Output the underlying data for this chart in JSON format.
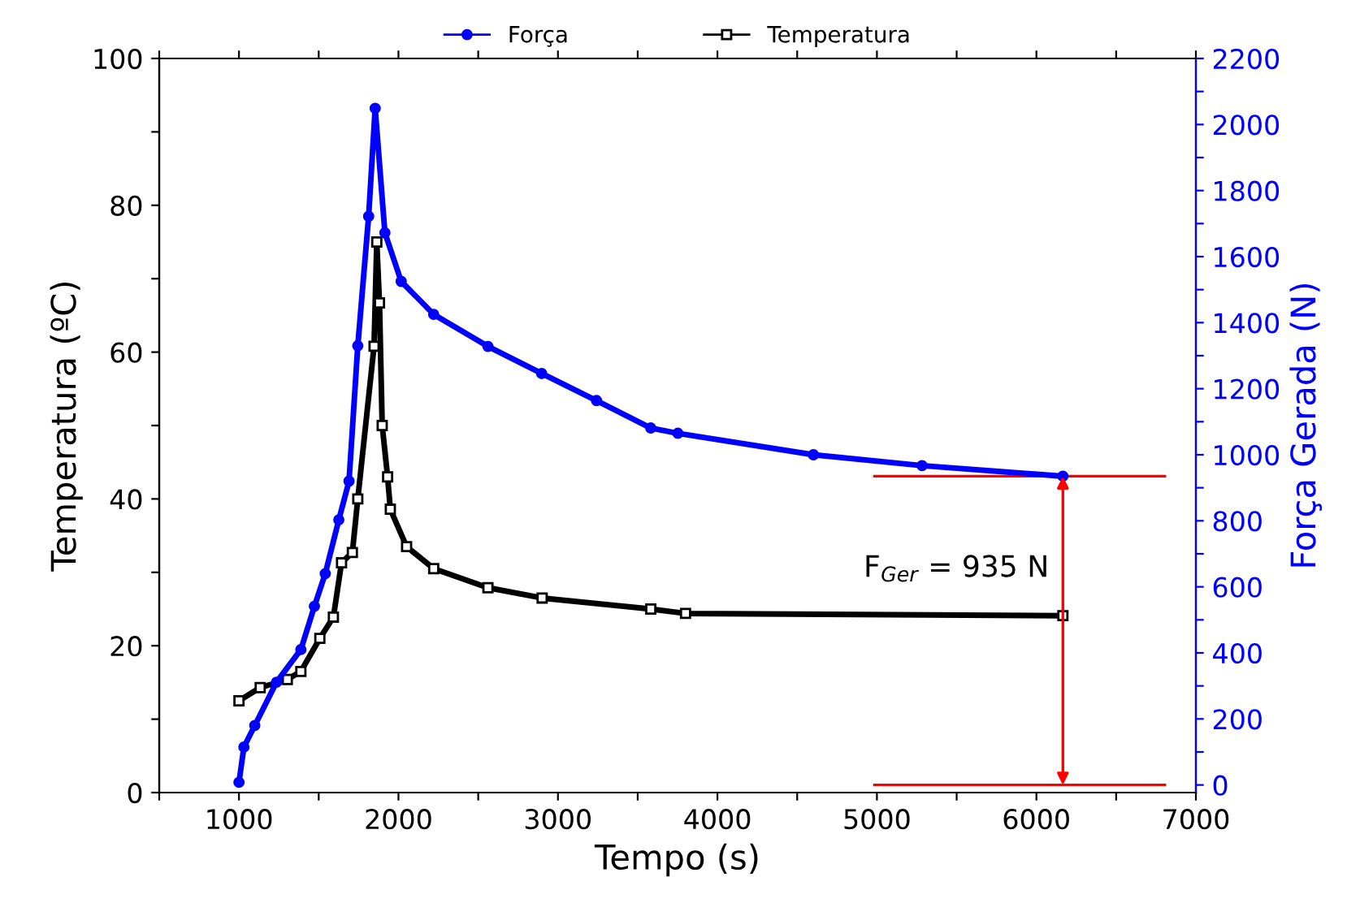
{
  "chart_data": {
    "type": "line",
    "xlabel": "Tempo (s)",
    "ylabel": "Temperatura (ºC)",
    "y2label": "Força Gerada (N)",
    "xlim": [
      500,
      7000
    ],
    "xticks": [
      {
        "value": 500,
        "label": null
      },
      1000,
      {
        "value": 1500,
        "label": null
      },
      2000,
      {
        "value": 2500,
        "label": null
      },
      3000,
      {
        "value": 3500,
        "label": null
      },
      4000,
      {
        "value": 4500,
        "label": null
      },
      5000,
      {
        "value": 5500,
        "label": null
      },
      6000,
      {
        "value": 6500,
        "label": null
      },
      7000
    ],
    "ylim": [
      0,
      100
    ],
    "yticks": [
      0,
      {
        "value": 10,
        "label": null
      },
      20,
      {
        "value": 30,
        "label": null
      },
      40,
      {
        "value": 50,
        "label": null
      },
      60,
      {
        "value": 70,
        "label": null
      },
      80,
      {
        "value": 90,
        "label": null
      },
      100
    ],
    "y2lim": [
      -23,
      2200
    ],
    "y2ticks": [
      0,
      {
        "value": 100,
        "label": null
      },
      200,
      {
        "value": 300,
        "label": null
      },
      400,
      {
        "value": 500,
        "label": null
      },
      600,
      {
        "value": 700,
        "label": null
      },
      800,
      {
        "value": 900,
        "label": null
      },
      1000,
      {
        "value": 1100,
        "label": null
      },
      1200,
      {
        "value": 1300,
        "label": null
      },
      1400,
      {
        "value": 1500,
        "label": null
      },
      1600,
      {
        "value": 1700,
        "label": null
      },
      1800,
      {
        "value": 1900,
        "label": null
      },
      2000,
      {
        "value": 2100,
        "label": null
      },
      2200
    ],
    "legend": "top",
    "grid": false,
    "line_style": "solid",
    "series": [
      {
        "name": "Força",
        "color": "#0000ff",
        "axis": "y2",
        "marker": "circle",
        "x": [
          1000,
          1031,
          1099,
          1235,
          1388,
          1473,
          1541,
          1626,
          1690,
          1745,
          1813,
          1854,
          1915,
          2017,
          2221,
          2561,
          2898,
          3242,
          3582,
          3752,
          4602,
          5283,
          6166
        ],
        "values": [
          8,
          115,
          180,
          311,
          410,
          541,
          640,
          803,
          920,
          1330,
          1722,
          2049,
          1672,
          1525,
          1425,
          1328,
          1246,
          1164,
          1081,
          1065,
          1000,
          967,
          935
        ]
      },
      {
        "name": "Temperatura",
        "color": "#000000",
        "axis": "y",
        "marker": "square",
        "x": [
          1000,
          1133,
          1303,
          1388,
          1507,
          1592,
          1643,
          1711,
          1745,
          1847,
          1864,
          1881,
          1898,
          1932,
          1949,
          2051,
          2221,
          2561,
          2901,
          3582,
          3800,
          6166
        ],
        "values": [
          12.5,
          14.3,
          15.4,
          16.5,
          21,
          23.9,
          31.3,
          32.7,
          40,
          60.8,
          75,
          66.7,
          50,
          43,
          38.6,
          33.5,
          30.5,
          27.9,
          26.5,
          25,
          24.4,
          24.1
        ]
      }
    ],
    "ref_lines": [
      {
        "axis": "y2",
        "value": 935,
        "label": null,
        "color": "#ff0000"
      },
      {
        "axis": "y2",
        "value": 0,
        "label": null,
        "color": "#ff0000"
      }
    ],
    "annotations": [
      "F$_{Ger}$ = 935 N"
    ]
  }
}
